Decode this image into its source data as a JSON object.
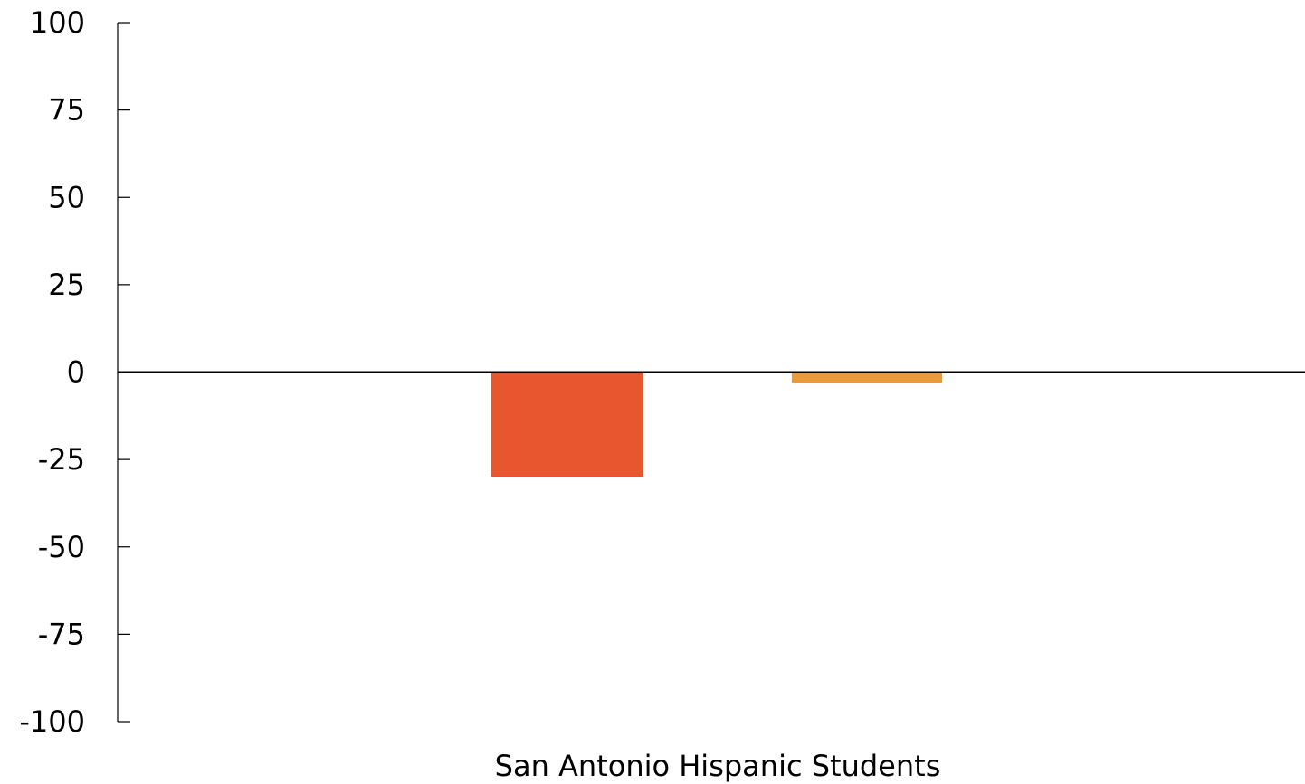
{
  "chart_data": {
    "type": "bar",
    "categories": [
      "San Antonio Hispanic Students"
    ],
    "series": [
      {
        "values": [
          -30
        ],
        "color": "#e8562f"
      },
      {
        "values": [
          -3
        ],
        "color": "#e89a3c"
      }
    ],
    "ylim": [
      -100,
      100
    ],
    "yticks": [
      100,
      75,
      50,
      25,
      0,
      -25,
      -50,
      -75,
      -100
    ],
    "xlabel": "",
    "ylabel": "",
    "title": "",
    "grid": false,
    "legend": "none"
  }
}
